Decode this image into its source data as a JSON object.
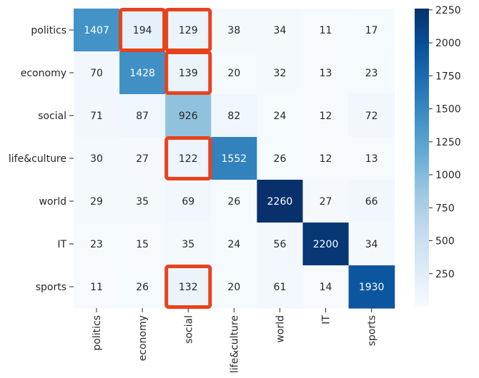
{
  "chart_data": {
    "type": "heatmap",
    "title": "",
    "xlabel": "",
    "ylabel": "",
    "row_labels": [
      "politics",
      "economy",
      "social",
      "life&culture",
      "world",
      "IT",
      "sports"
    ],
    "col_labels": [
      "politics",
      "economy",
      "social",
      "life&culture",
      "world",
      "IT",
      "sports"
    ],
    "values": [
      [
        1407,
        194,
        129,
        38,
        34,
        11,
        17
      ],
      [
        70,
        1428,
        139,
        20,
        32,
        13,
        23
      ],
      [
        71,
        87,
        926,
        82,
        24,
        12,
        72
      ],
      [
        30,
        27,
        122,
        1552,
        26,
        12,
        13
      ],
      [
        29,
        35,
        69,
        26,
        2260,
        27,
        66
      ],
      [
        23,
        15,
        35,
        24,
        56,
        2200,
        34
      ],
      [
        11,
        26,
        132,
        20,
        61,
        14,
        1930
      ]
    ],
    "colormap": "Blues",
    "color_range": [
      0,
      2260
    ],
    "colorbar_ticks": [
      250,
      500,
      750,
      1000,
      1250,
      1500,
      1750,
      2000,
      2250
    ],
    "highlighted_cells": [
      [
        0,
        1
      ],
      [
        0,
        2
      ],
      [
        1,
        2
      ],
      [
        3,
        2
      ],
      [
        6,
        2
      ]
    ],
    "highlight_color": "#e8421c"
  }
}
